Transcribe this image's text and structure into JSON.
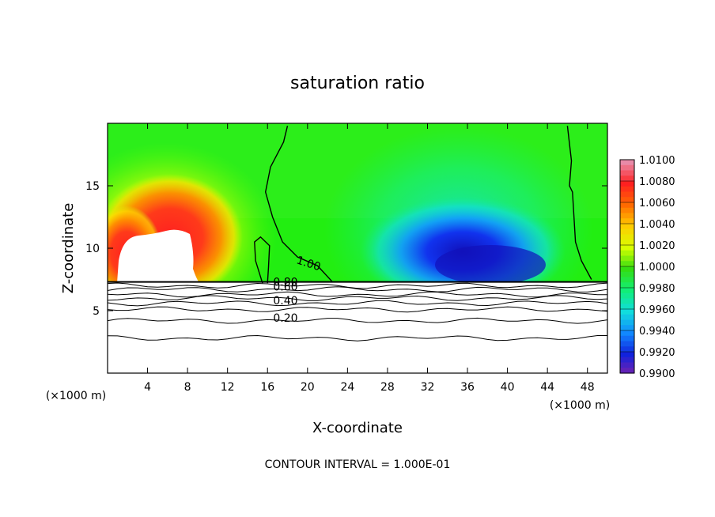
{
  "chart_data": {
    "type": "heatmap",
    "title": "saturation ratio",
    "xlabel": "X-coordinate",
    "ylabel": "Z-coordinate",
    "x_unit_left": "(×1000 m)",
    "x_unit_right": "(×1000 m)",
    "xlim": [
      0,
      50
    ],
    "ylim": [
      0,
      20
    ],
    "x_ticks": [
      4,
      8,
      12,
      16,
      20,
      24,
      28,
      32,
      36,
      40,
      44,
      48
    ],
    "y_ticks": [
      5,
      10,
      15
    ],
    "footer": "CONTOUR INTERVAL = 1.000E-01",
    "colorbar": {
      "min": 0.99,
      "max": 1.01,
      "tick_labels": [
        "1.0100",
        "1.0080",
        "1.0060",
        "1.0040",
        "1.0020",
        "1.0000",
        "0.9980",
        "0.9960",
        "0.9940",
        "0.9920",
        "0.9900"
      ],
      "colors": [
        "#e88aa8",
        "#ff2020",
        "#ff6a00",
        "#ffcc00",
        "#d8ff00",
        "#33dd11",
        "#11ee77",
        "#11dddd",
        "#1188ff",
        "#1122dd",
        "#7a22aa"
      ]
    },
    "contour_labels": [
      {
        "text": "1.00",
        "x": 20.0,
        "y": 8.5,
        "angle": 18
      },
      {
        "text": "0.80",
        "x": 17.8,
        "y": 7.0,
        "angle": 0
      },
      {
        "text": "0.60",
        "x": 17.8,
        "y": 6.6,
        "angle": 0
      },
      {
        "text": "0.40",
        "x": 17.8,
        "y": 5.5,
        "angle": 0
      },
      {
        "text": "0.20",
        "x": 17.8,
        "y": 4.1,
        "angle": 0
      }
    ],
    "surface_contours": [
      {
        "level": 0.2,
        "z": 4.2
      },
      {
        "level": 0.3,
        "z": 2.8
      },
      {
        "level": 0.4,
        "z": 5.6
      },
      {
        "level": 0.5,
        "z": 5.1
      },
      {
        "level": 0.6,
        "z": 6.3
      },
      {
        "level": 0.7,
        "z": 6.0
      },
      {
        "level": 0.8,
        "z": 6.7
      },
      {
        "level": 0.9,
        "z": 7.0
      }
    ],
    "contour_1_00_lines": [
      [
        [
          18.0,
          19.8
        ],
        [
          17.6,
          18.5
        ],
        [
          16.3,
          16.5
        ],
        [
          15.8,
          14.5
        ],
        [
          16.5,
          12.5
        ],
        [
          17.5,
          10.5
        ],
        [
          19.0,
          9.3
        ],
        [
          21.0,
          8.6
        ],
        [
          22.5,
          7.3
        ]
      ],
      [
        [
          15.5,
          7.2
        ],
        [
          14.8,
          9.0
        ],
        [
          14.7,
          10.5
        ],
        [
          15.3,
          10.9
        ],
        [
          16.2,
          10.2
        ],
        [
          16.1,
          8.5
        ],
        [
          16.0,
          7.2
        ]
      ],
      [
        [
          46.0,
          19.8
        ],
        [
          46.4,
          17.0
        ],
        [
          46.2,
          15.0
        ],
        [
          46.5,
          14.5
        ],
        [
          46.8,
          10.5
        ],
        [
          47.4,
          9.0
        ],
        [
          48.4,
          7.5
        ]
      ]
    ],
    "terrain_top_z": 7.3
  }
}
